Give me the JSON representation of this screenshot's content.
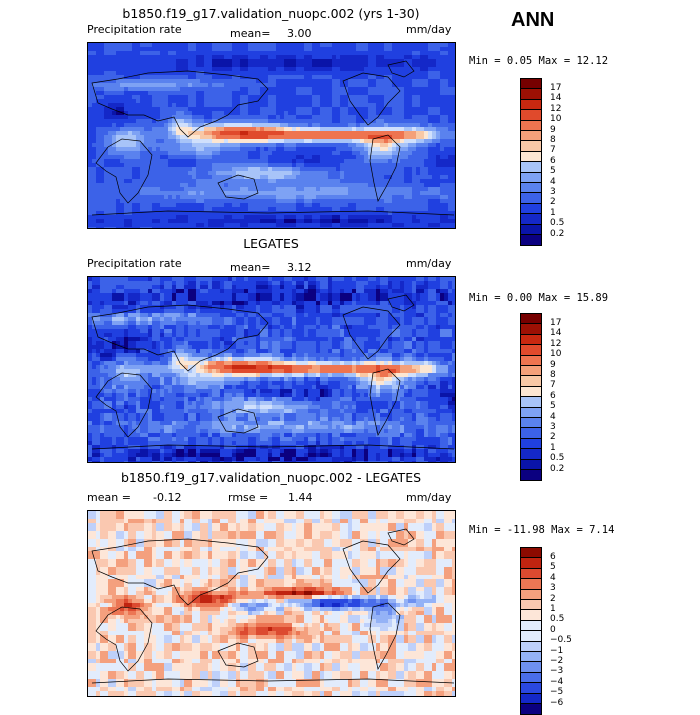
{
  "season": "ANN",
  "panels": [
    {
      "title": "b1850.f19_g17.validation_nuopc.002 (yrs 1-30)",
      "left_label": "Precipitation rate",
      "mean_label": "mean=",
      "mean_value": "3.00",
      "units": "mm/day",
      "stats": "Min =   0.05 Max =  12.12",
      "palette": "abs"
    },
    {
      "title": "LEGATES",
      "left_label": "Precipitation rate",
      "mean_label": "mean=",
      "mean_value": "3.12",
      "units": "mm/day",
      "stats": "Min =   0.00 Max =  15.89",
      "palette": "abs"
    },
    {
      "title": "b1850.f19_g17.validation_nuopc.002 - LEGATES",
      "left_label": "mean =",
      "left_value": "-0.12",
      "rmse_label": "rmse =",
      "rmse_value": "1.44",
      "units": "mm/day",
      "stats": "Min = -11.98 Max =   7.14",
      "palette": "diff"
    }
  ],
  "chart_data": [
    {
      "type": "heatmap",
      "title": "b1850.f19_g17.validation_nuopc.002 (yrs 1-30)",
      "variable": "Precipitation rate",
      "units": "mm/day",
      "mean": 3.0,
      "min": 0.05,
      "max": 12.12,
      "colorbar_levels": [
        17,
        14,
        12,
        10,
        9,
        8,
        7,
        6,
        5,
        4,
        3,
        2,
        1,
        0.5,
        0.2
      ],
      "colorbar_labels": [
        "17",
        "14",
        "12",
        "10",
        "9",
        "8",
        "7",
        "6",
        "5",
        "4",
        "3",
        "2",
        "1",
        "0.5",
        "0.2"
      ]
    },
    {
      "type": "heatmap",
      "title": "LEGATES",
      "variable": "Precipitation rate",
      "units": "mm/day",
      "mean": 3.12,
      "min": 0.0,
      "max": 15.89,
      "colorbar_levels": [
        17,
        14,
        12,
        10,
        9,
        8,
        7,
        6,
        5,
        4,
        3,
        2,
        1,
        0.5,
        0.2
      ],
      "colorbar_labels": [
        "17",
        "14",
        "12",
        "10",
        "9",
        "8",
        "7",
        "6",
        "5",
        "4",
        "3",
        "2",
        "1",
        "0.5",
        "0.2"
      ]
    },
    {
      "type": "heatmap",
      "title": "b1850.f19_g17.validation_nuopc.002 - LEGATES",
      "units": "mm/day",
      "mean": -0.12,
      "rmse": 1.44,
      "min": -11.98,
      "max": 7.14,
      "colorbar_levels": [
        6,
        5,
        4,
        3,
        2,
        1,
        0.5,
        0,
        -0.5,
        -1,
        -2,
        -3,
        -4,
        -5,
        -6
      ],
      "colorbar_labels": [
        "6",
        "5",
        "4",
        "3",
        "2",
        "1",
        "0.5",
        "0",
        "−0.5",
        "−1",
        "−2",
        "−3",
        "−4",
        "−5",
        "−6"
      ]
    }
  ],
  "colors": {
    "abs": [
      "#0b0080",
      "#0a14a8",
      "#1428c8",
      "#2040e0",
      "#3c62e8",
      "#5a82ee",
      "#7ea2f4",
      "#a8c4f8",
      "#d0e0fc",
      "#fce6d2",
      "#f8c8a6",
      "#f4a07a",
      "#ee7450",
      "#e04a2c",
      "#c82810",
      "#9c1004",
      "#760000"
    ],
    "diff": [
      "#0b0080",
      "#1428c8",
      "#2a48e0",
      "#4a6eea",
      "#6e90f0",
      "#94b2f6",
      "#bed0fa",
      "#e2ecfc",
      "#fde6d8",
      "#fac8b0",
      "#f4a07e",
      "#ec7654",
      "#dc4a30",
      "#c02410",
      "#8c0a00"
    ],
    "coast": "#000000"
  }
}
